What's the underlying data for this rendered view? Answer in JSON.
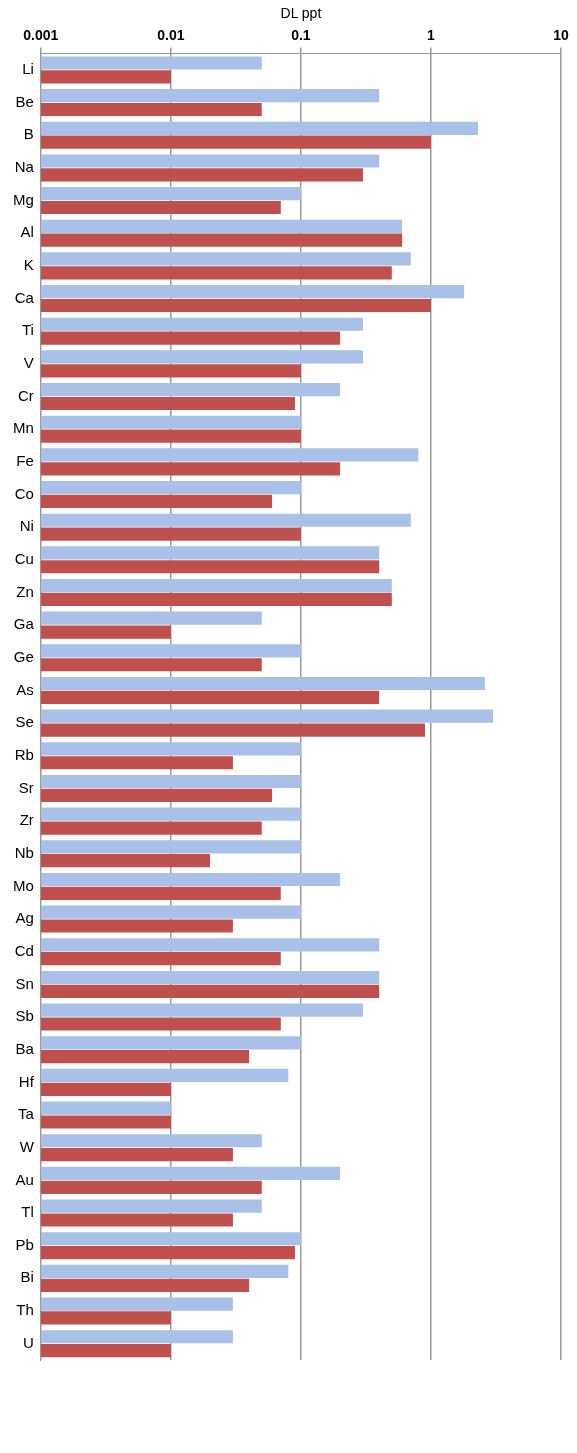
{
  "chart_data": {
    "type": "bar",
    "orientation": "horizontal",
    "xlabel": "DL ppt",
    "log": "x",
    "grid": "x",
    "xlim": [
      0.001,
      10
    ],
    "xticks": [
      0.001,
      0.01,
      0.1,
      1,
      10
    ],
    "categories": [
      "Li",
      "Be",
      "B",
      "Na",
      "Mg",
      "Al",
      "K",
      "Ca",
      "Ti",
      "V",
      "Cr",
      "Mn",
      "Fe",
      "Co",
      "Ni",
      "Cu",
      "Zn",
      "Ga",
      "Ge",
      "As",
      "Se",
      "Rb",
      "Sr",
      "Zr",
      "Nb",
      "Mo",
      "Ag",
      "Cd",
      "Sn",
      "Sb",
      "Ba",
      "Hf",
      "Ta",
      "W",
      "Au",
      "Tl",
      "Pb",
      "Bi",
      "Th",
      "U"
    ],
    "series": [
      {
        "color": "#a9c0e8",
        "values": [
          0.05,
          0.4,
          2.3,
          0.4,
          0.1,
          0.6,
          0.7,
          1.8,
          0.3,
          0.3,
          0.2,
          0.1,
          0.8,
          0.1,
          0.7,
          0.4,
          0.5,
          0.05,
          0.1,
          2.6,
          3,
          0.1,
          0.1,
          0.1,
          0.1,
          0.2,
          0.1,
          0.4,
          0.4,
          0.3,
          0.1,
          0.08,
          0.01,
          0.05,
          0.2,
          0.05,
          0.1,
          0.08,
          0.03,
          0.03
        ]
      },
      {
        "color": "#c0504d",
        "values": [
          0.01,
          0.05,
          1,
          0.3,
          0.07,
          0.6,
          0.5,
          1,
          0.2,
          0.1,
          0.09,
          0.1,
          0.2,
          0.06,
          0.1,
          0.4,
          0.5,
          0.01,
          0.05,
          0.4,
          0.9,
          0.03,
          0.06,
          0.05,
          0.02,
          0.07,
          0.03,
          0.07,
          0.4,
          0.07,
          0.04,
          0.01,
          0.01,
          0.03,
          0.05,
          0.03,
          0.09,
          0.04,
          0.01,
          0.01
        ]
      }
    ]
  }
}
